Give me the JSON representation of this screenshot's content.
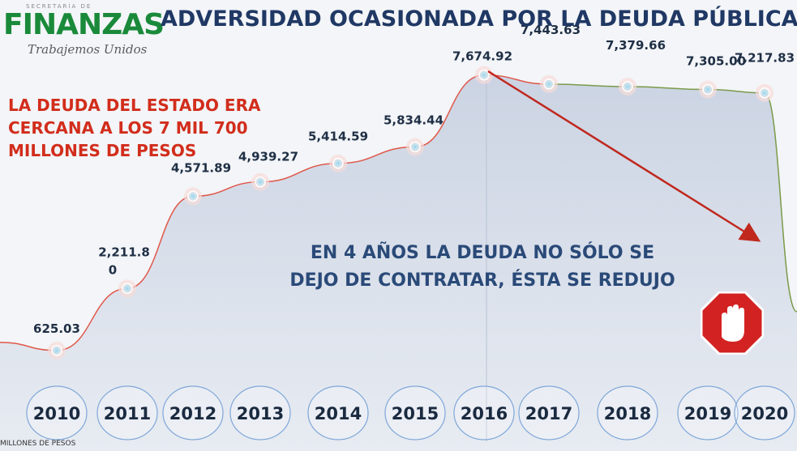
{
  "logo": {
    "top": "SECRETARÍA DE",
    "main": "FINANZAS",
    "sub": "Trabajemos Unidos"
  },
  "title": "ADVERSIDAD OCASIONADA POR LA DEUDA PÚBLICA",
  "notes": {
    "red": "LA DEUDA DEL ESTADO ERA CERCANA A LOS 7 MIL 700 MILLONES DE PESOS",
    "center": "EN 4 AÑOS LA DEUDA NO SÓLO SE DEJO DE CONTRATAR, ÉSTA SE REDUJO"
  },
  "colors": {
    "title": "#203864",
    "red_text": "#d22d1c",
    "arrow": "#c0281e",
    "green_line": "#7a9a4a",
    "red_line": "#e0574a"
  },
  "icons": [
    "stop-hand-icon"
  ],
  "chart_data": {
    "type": "area",
    "title": "",
    "xlabel": "",
    "ylabel": "MILLONES DE PESOS",
    "categories": [
      "2010",
      "2011",
      "2012",
      "2013",
      "2014",
      "2015",
      "2016",
      "2017",
      "2018",
      "2019",
      "2020"
    ],
    "values": [
      625.03,
      2211.8,
      4571.89,
      4939.27,
      5414.59,
      5834.44,
      7674.92,
      7443.63,
      7379.66,
      7305.0,
      7217.83
    ],
    "labels": [
      "625.03",
      "2,211.8\n0",
      "4,571.89",
      "4,939.27",
      "5,414.59",
      "5,834.44",
      "7,674.92",
      "7,443.63",
      "7,379.66",
      "7,305.00",
      "7,217.83"
    ],
    "ylim": [
      0,
      8000
    ],
    "grid": false,
    "annotation": "arrow from 2016 to 2020 showing decrease"
  }
}
